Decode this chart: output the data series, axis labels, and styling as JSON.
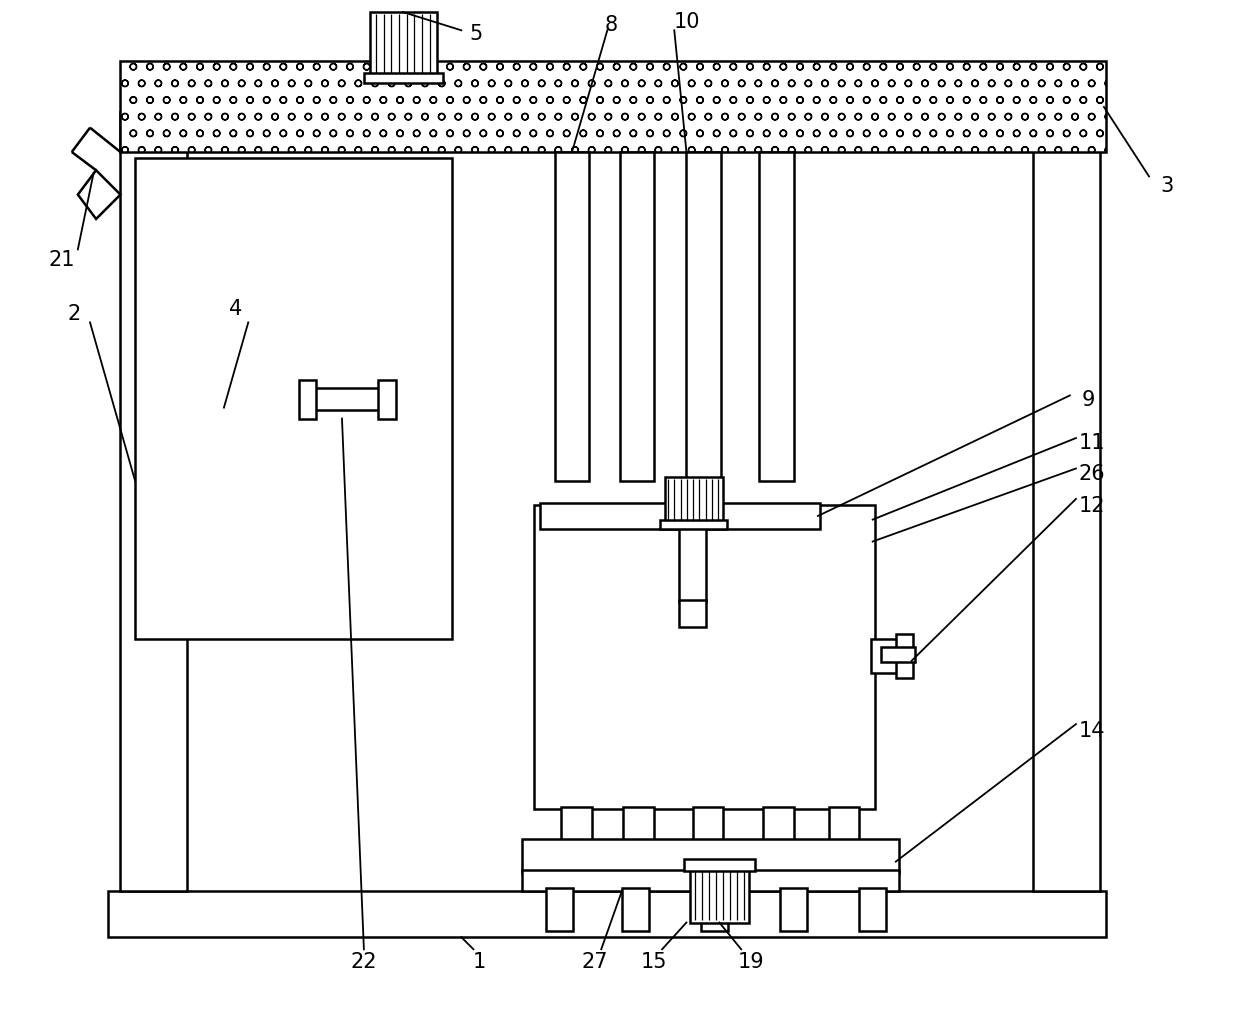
{
  "bg_color": "#ffffff",
  "line_color": "#000000",
  "figsize": [
    12.39,
    10.12
  ],
  "dpi": 100
}
